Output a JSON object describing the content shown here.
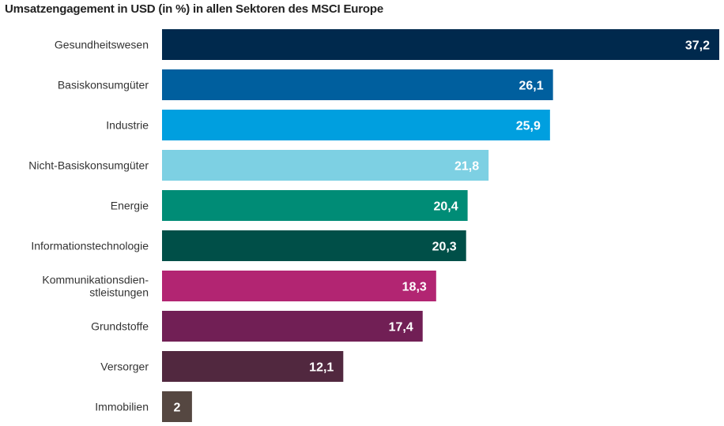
{
  "chart_data": {
    "type": "bar",
    "orientation": "horizontal",
    "title": "Umsatzengagement in USD (in %) in allen Sektoren des MSCI Europe",
    "xlabel": "",
    "ylabel": "",
    "xlim": [
      0,
      37.2
    ],
    "grid": false,
    "categories": [
      "Gesundheitswesen",
      "Basiskonsumgüter",
      "Industrie",
      "Nicht-Basiskonsumgüter",
      "Energie",
      "Informationstechnologie",
      "Kommunikationsdien-\nstleistungen",
      "Grundstoffe",
      "Versorger",
      "Immobilien"
    ],
    "values": [
      37.2,
      26.1,
      25.9,
      21.8,
      20.4,
      20.3,
      18.3,
      17.4,
      12.1,
      2
    ],
    "data_labels": [
      "37,2",
      "26,1",
      "25,9",
      "21,8",
      "20,4",
      "20,3",
      "18,3",
      "17,4",
      "12,1",
      "2"
    ],
    "colors": [
      "#00294d",
      "#005f9e",
      "#009fdf",
      "#7dd0e3",
      "#008c76",
      "#004f48",
      "#b22572",
      "#711f55",
      "#51283f",
      "#554741"
    ]
  }
}
